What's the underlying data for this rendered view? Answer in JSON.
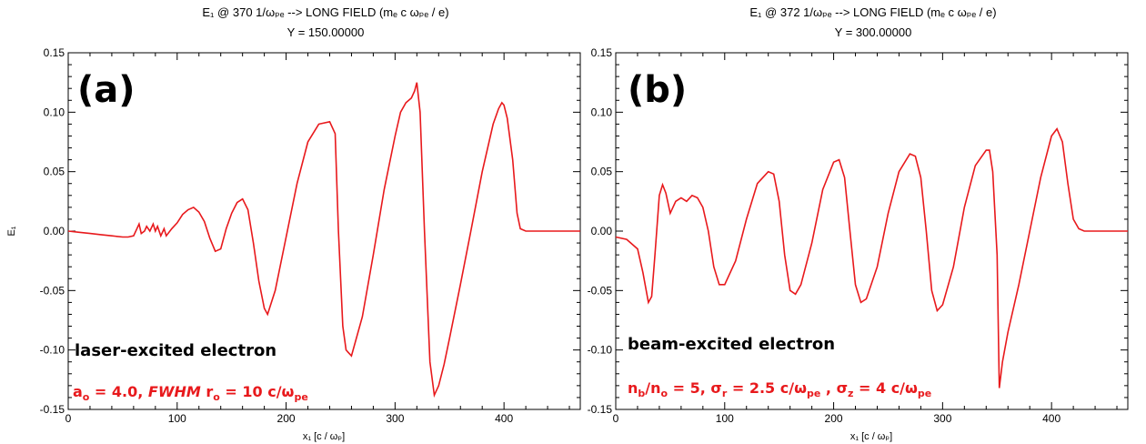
{
  "chart_data": [
    {
      "type": "line",
      "title": "E₁ @ 370 1/ωₚₑ -->  LONG FIELD  (mₑ c ωₚₑ / e)",
      "subtitle": "Y = 150.00000",
      "xlabel": "x₁ [c / ωₚ]",
      "ylabel": "E₁",
      "xlim": [
        0,
        470
      ],
      "ylim": [
        -0.15,
        0.15
      ],
      "xticks": [
        "0",
        "100",
        "200",
        "300",
        "400"
      ],
      "yticks": [
        "-0.15",
        "-0.10",
        "-0.05",
        "0.00",
        "0.05",
        "0.10",
        "0.15"
      ],
      "panel_label": "(a)",
      "annotation_1": "laser-excited electron",
      "annotation_2": "a₀ = 4.0,  FWHM  r₀ = 10 c/ωₚₑ",
      "line_color": "#e8191c",
      "series": [
        {
          "x": [
            0,
            10,
            20,
            30,
            40,
            50,
            55,
            60,
            63,
            65,
            67,
            70,
            72,
            75,
            78,
            80,
            82,
            85,
            88,
            90,
            95,
            100,
            105,
            110,
            115,
            120,
            125,
            130,
            135,
            140,
            145,
            150,
            155,
            160,
            165,
            170,
            175,
            180,
            183,
            190,
            200,
            210,
            220,
            230,
            240,
            245,
            248,
            252,
            255,
            260,
            270,
            280,
            290,
            300,
            305,
            310,
            315,
            318,
            320,
            323,
            327,
            332,
            336,
            340,
            345,
            350,
            360,
            370,
            380,
            390,
            395,
            398,
            400,
            403,
            408,
            412,
            415,
            420,
            430,
            450,
            470
          ],
          "y": [
            0.0,
            -0.001,
            -0.002,
            -0.003,
            -0.004,
            -0.005,
            -0.005,
            -0.004,
            0.002,
            0.006,
            -0.002,
            0.0,
            0.004,
            0.0,
            0.006,
            0.0,
            0.004,
            -0.004,
            0.002,
            -0.004,
            0.002,
            0.007,
            0.014,
            0.018,
            0.02,
            0.016,
            0.008,
            -0.006,
            -0.017,
            -0.015,
            0.002,
            0.015,
            0.024,
            0.027,
            0.018,
            -0.01,
            -0.042,
            -0.065,
            -0.07,
            -0.05,
            -0.005,
            0.04,
            0.075,
            0.09,
            0.092,
            0.082,
            0.0,
            -0.08,
            -0.1,
            -0.105,
            -0.072,
            -0.02,
            0.035,
            0.08,
            0.1,
            0.108,
            0.112,
            0.118,
            0.125,
            0.1,
            0.0,
            -0.11,
            -0.138,
            -0.13,
            -0.112,
            -0.09,
            -0.045,
            0.002,
            0.05,
            0.09,
            0.103,
            0.108,
            0.106,
            0.095,
            0.06,
            0.015,
            0.002,
            0.0,
            0.0,
            0.0,
            0.0
          ]
        }
      ]
    },
    {
      "type": "line",
      "title": "E₁ @ 372 1/ωₚₑ --> LONG FIELD (mₑ c ωₚₑ / e)",
      "subtitle": "Y = 300.00000",
      "xlabel": "x₁ [c / ωₚ]",
      "ylabel": "",
      "xlim": [
        0,
        470
      ],
      "ylim": [
        -0.15,
        0.15
      ],
      "xticks": [
        "0",
        "100",
        "200",
        "300",
        "400"
      ],
      "yticks": [
        "-0.15",
        "-0.10",
        "-0.05",
        "0.00",
        "0.05",
        "0.10",
        "0.15"
      ],
      "panel_label": "(b)",
      "annotation_1": "beam-excited electron",
      "annotation_2": "nb/no = 5, σr = 2.5 c/ωpe , σz = 4 c/ωpe",
      "line_color": "#e8191c",
      "series": [
        {
          "x": [
            0,
            10,
            20,
            25,
            30,
            33,
            36,
            40,
            43,
            46,
            50,
            55,
            60,
            65,
            70,
            75,
            80,
            85,
            90,
            95,
            100,
            110,
            120,
            130,
            140,
            145,
            150,
            155,
            160,
            165,
            170,
            180,
            190,
            200,
            205,
            210,
            215,
            220,
            225,
            230,
            240,
            250,
            260,
            270,
            275,
            280,
            285,
            290,
            295,
            300,
            310,
            320,
            330,
            340,
            343,
            346,
            350,
            352,
            355,
            360,
            370,
            380,
            390,
            400,
            405,
            410,
            415,
            420,
            425,
            430,
            450,
            470
          ],
          "y": [
            -0.005,
            -0.007,
            -0.015,
            -0.035,
            -0.06,
            -0.055,
            -0.02,
            0.03,
            0.039,
            0.032,
            0.015,
            0.025,
            0.028,
            0.025,
            0.03,
            0.028,
            0.02,
            0.0,
            -0.03,
            -0.045,
            -0.045,
            -0.025,
            0.01,
            0.04,
            0.05,
            0.048,
            0.025,
            -0.02,
            -0.05,
            -0.053,
            -0.045,
            -0.01,
            0.035,
            0.058,
            0.06,
            0.045,
            0.0,
            -0.045,
            -0.06,
            -0.057,
            -0.03,
            0.015,
            0.05,
            0.065,
            0.063,
            0.045,
            0.0,
            -0.05,
            -0.067,
            -0.062,
            -0.03,
            0.02,
            0.055,
            0.068,
            0.068,
            0.05,
            -0.02,
            -0.132,
            -0.11,
            -0.085,
            -0.045,
            0.0,
            0.045,
            0.08,
            0.086,
            0.075,
            0.04,
            0.01,
            0.002,
            0.0,
            0.0,
            0.0
          ]
        }
      ]
    }
  ]
}
